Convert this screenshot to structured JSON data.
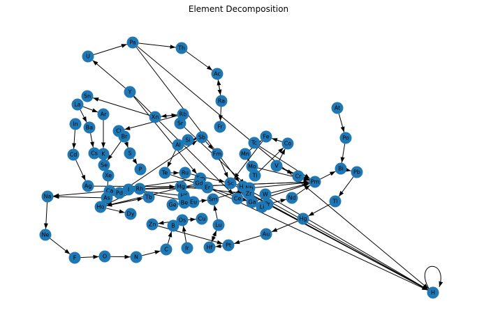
{
  "title": "Element Decomposition",
  "graph": {
    "node_color": "#1f77b4",
    "edge_color": "#000000",
    "nodes": [
      "Pa",
      "Th",
      "U",
      "Ac",
      "Y",
      "Ra",
      "Sn",
      "La",
      "Ar",
      "Xn",
      "Rb",
      "Sr",
      "At",
      "In",
      "Ba",
      "Fr",
      "Cl",
      "Br",
      "Po",
      "Si",
      "Sb",
      "Fe",
      "Tc",
      "Co",
      "S",
      "Cs",
      "K",
      "Mn",
      "Al",
      "Mo",
      "Se",
      "Bi",
      "Pb",
      "P",
      "Tl",
      "V",
      "Te",
      "Ru",
      "Cr",
      "Pm",
      "Xe",
      "Tm",
      "Gd",
      "Er",
      "Kr",
      "He",
      "Ag",
      "Ca",
      "Nb",
      "Hf2",
      "Pd",
      "Mg",
      "Zr",
      "Na",
      "As",
      "Rh",
      "Hf",
      "Re",
      "W",
      "Lu",
      "I",
      "Sm",
      "Ce",
      "Nd",
      "Tb",
      "Eu",
      "Dy",
      "Ge",
      "Be",
      "Pr",
      "Ga",
      "Ho",
      "Os",
      "Cu",
      "Zn",
      "B",
      "Hg",
      "Ne",
      "Au",
      "Ir",
      "Pt",
      "F",
      "O",
      "N",
      "C",
      "H"
    ],
    "labels": {
      "Hf2": "Hf"
    },
    "edges": [
      [
        "U",
        "Pa"
      ],
      [
        "Pa",
        "Th"
      ],
      [
        "Th",
        "Ac"
      ],
      [
        "Ac",
        "Ra"
      ],
      [
        "Ra",
        "Ac"
      ],
      [
        "Ra",
        "Fr"
      ],
      [
        "Y",
        "U"
      ],
      [
        "Y",
        "Tm"
      ],
      [
        "Xn",
        "Sn"
      ],
      [
        "Xn",
        "Rb"
      ],
      [
        "Rb",
        "Xn"
      ],
      [
        "Rb",
        "Sr"
      ],
      [
        "Rb",
        "Cl"
      ],
      [
        "La",
        "Ba"
      ],
      [
        "La",
        "Ar"
      ],
      [
        "In",
        "Cd"
      ],
      [
        "Cd",
        "Ag"
      ],
      [
        "Ba",
        "Cs"
      ],
      [
        "Ar",
        "K"
      ],
      [
        "Cl",
        "Br"
      ],
      [
        "Br",
        "S"
      ],
      [
        "Br",
        "Se"
      ],
      [
        "S",
        "P"
      ],
      [
        "Cs",
        "K"
      ],
      [
        "K",
        "Se"
      ],
      [
        "At",
        "Po"
      ],
      [
        "Po",
        "Bi"
      ],
      [
        "Bi",
        "Pb"
      ],
      [
        "Pb",
        "Tl"
      ],
      [
        "Tl",
        "Hg"
      ],
      [
        "Hg",
        "Au"
      ],
      [
        "Au",
        "Pt"
      ],
      [
        "Pt",
        "Hf2"
      ],
      [
        "Hf2",
        "Lu"
      ],
      [
        "Lu",
        "Hf2"
      ],
      [
        "Ir",
        "Os"
      ],
      [
        "Os",
        "Cu"
      ],
      [
        "Os",
        "Zn"
      ],
      [
        "B",
        "Os"
      ],
      [
        "C",
        "B"
      ],
      [
        "N",
        "C"
      ],
      [
        "O",
        "N"
      ],
      [
        "F",
        "O"
      ],
      [
        "Ne",
        "F"
      ],
      [
        "Na",
        "Ne"
      ],
      [
        "H",
        "H"
      ],
      [
        "Fe",
        "Sc"
      ],
      [
        "Co",
        "Fe"
      ],
      [
        "V",
        "Co"
      ],
      [
        "V",
        "Cr"
      ],
      [
        "Cr",
        "Pm"
      ],
      [
        "Mn",
        "Fe"
      ],
      [
        "Mn",
        "Mo"
      ],
      [
        "Mo",
        "Ti"
      ],
      [
        "Ti",
        "Mo"
      ],
      [
        "Sb",
        "Si"
      ],
      [
        "Sb",
        "Fm"
      ],
      [
        "Al",
        "Sb"
      ],
      [
        "Al",
        "Te"
      ],
      [
        "Te",
        "Ru"
      ],
      [
        "Ru",
        "Sc"
      ],
      [
        "Pd",
        "Ca"
      ],
      [
        "Ca",
        "Rh"
      ],
      [
        "Rh",
        "Mg"
      ],
      [
        "Mg",
        "Kr"
      ],
      [
        "Kr",
        "Zr"
      ],
      [
        "Zr",
        "Ga"
      ],
      [
        "Ga",
        "Li"
      ],
      [
        "Li",
        "Pr"
      ],
      [
        "Pr",
        "Nd"
      ],
      [
        "Nd",
        "Pm"
      ],
      [
        "Pm",
        "Bi"
      ],
      [
        "He",
        "H"
      ],
      [
        "Zr",
        "H"
      ],
      [
        "W",
        "H"
      ],
      [
        "Pr",
        "H"
      ],
      [
        "Er",
        "H"
      ],
      [
        "Sc",
        "H"
      ],
      [
        "Pa",
        "H"
      ],
      [
        "Pa",
        "He"
      ],
      [
        "Y",
        "Ce"
      ],
      [
        "Tb",
        "Ho"
      ],
      [
        "Ho",
        "Dy"
      ],
      [
        "Ho",
        "Tb"
      ],
      [
        "Ge",
        "Eu"
      ],
      [
        "Be",
        "Ge"
      ],
      [
        "Eu",
        "Sm"
      ],
      [
        "Sm",
        "Nb"
      ],
      [
        "Nb",
        "Ce"
      ],
      [
        "Ce",
        "Ga"
      ],
      [
        "As",
        "Na"
      ],
      [
        "I",
        "As"
      ],
      [
        "Ca",
        "Na"
      ],
      [
        "Rh",
        "Ho"
      ],
      [
        "Gd",
        "Ho"
      ],
      [
        "Tm",
        "Ca"
      ],
      [
        "Er",
        "I"
      ],
      [
        "Hf",
        "I"
      ],
      [
        "Re",
        "I"
      ],
      [
        "Lu",
        "Sm"
      ],
      [
        "Xe",
        "As"
      ],
      [
        "Ag",
        "Mg"
      ],
      [
        "Mg",
        "Pm"
      ],
      [
        "Nb",
        "Pm"
      ],
      [
        "Kr",
        "Pm"
      ],
      [
        "Ga",
        "Pm"
      ],
      [
        "Mo",
        "Pm"
      ],
      [
        "V",
        "Pm"
      ],
      [
        "Tc",
        "Pm"
      ],
      [
        "Fm",
        "Sc"
      ],
      [
        "Ti",
        "Co"
      ],
      [
        "W",
        "Pm"
      ],
      [
        "Te",
        "Ga"
      ],
      [
        "Pd",
        "Sb"
      ],
      [
        "Sr",
        "Nb"
      ],
      [
        "Zn",
        "Pt"
      ]
    ]
  },
  "extra_nodes": [
    "Cd",
    "Sc",
    "Fm",
    "Ti",
    "Li"
  ]
}
